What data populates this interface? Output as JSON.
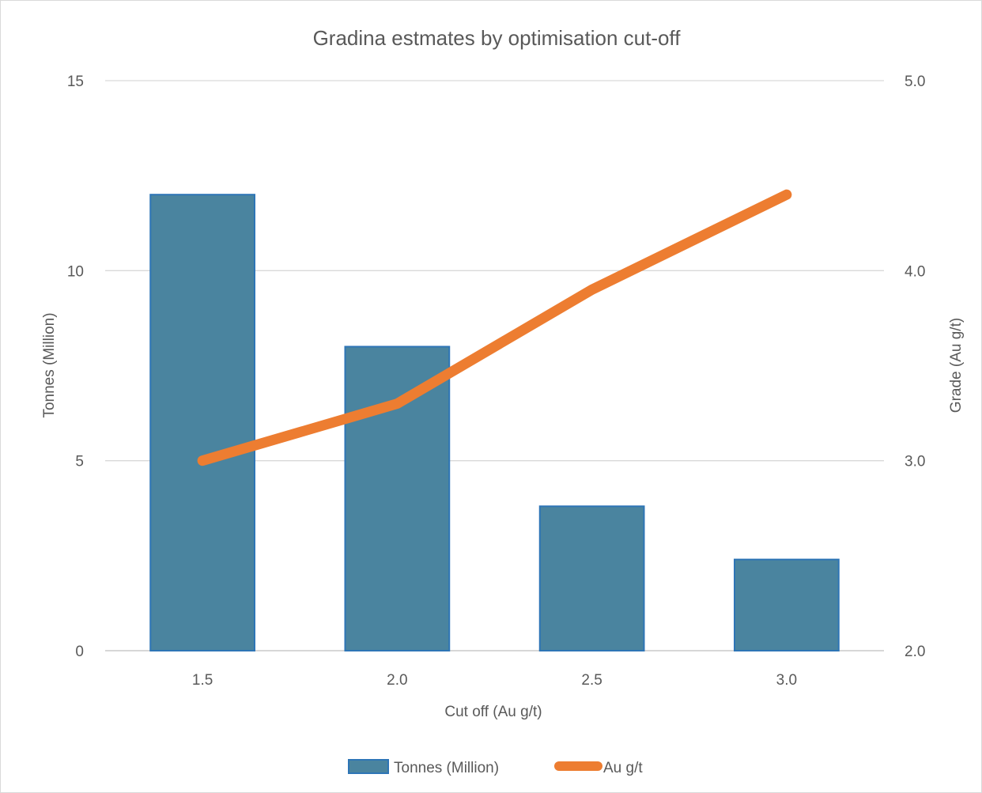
{
  "chart_data": {
    "type": "bar",
    "title": "Gradina estmates by optimisation cut-off",
    "xlabel": "Cut off (Au g/t)",
    "ylabel": "Tonnes (Million)",
    "y2label": "Grade (Au g/t)",
    "categories": [
      "1.5",
      "2.0",
      "2.5",
      "3.0"
    ],
    "ylim": [
      0,
      15
    ],
    "y2lim": [
      2.0,
      5.0
    ],
    "yticks": [
      "0",
      "5",
      "10",
      "15"
    ],
    "y2ticks": [
      "2.0",
      "3.0",
      "4.0",
      "5.0"
    ],
    "grid": true,
    "legend_position": "bottom",
    "series": [
      {
        "name": "Tonnes (Million)",
        "type": "bar",
        "axis": "left",
        "values": [
          12.0,
          8.0,
          3.8,
          2.4
        ],
        "color": "#4a849f",
        "edge_color": "#2e75b6"
      },
      {
        "name": "Au g/t",
        "type": "line",
        "axis": "right",
        "values": [
          3.0,
          3.3,
          3.9,
          4.4
        ],
        "color": "#ed7d31"
      }
    ]
  }
}
